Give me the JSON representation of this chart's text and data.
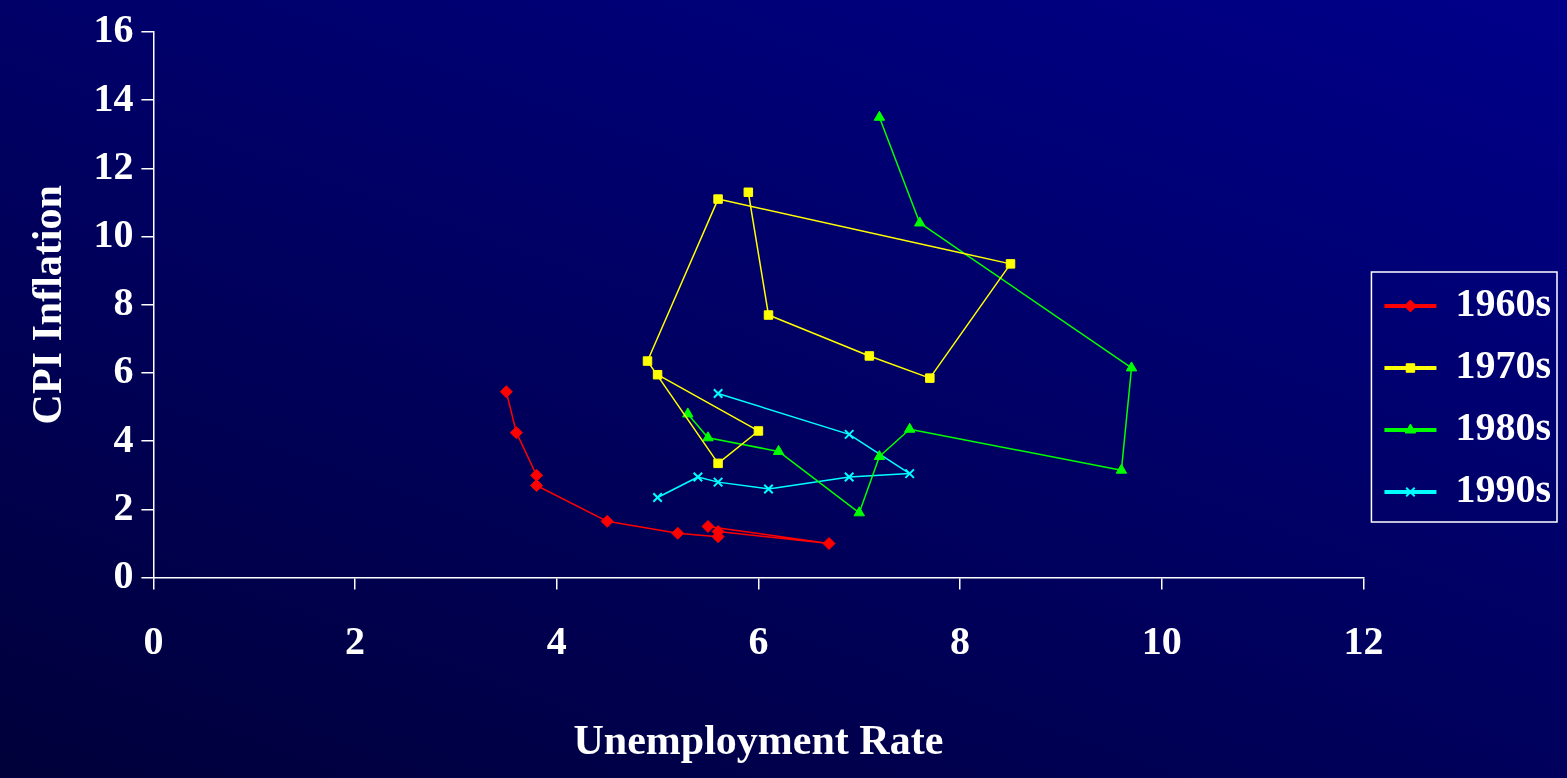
{
  "chart_data": {
    "type": "line",
    "xlabel": "Unemployment Rate",
    "ylabel": "CPI Inflation",
    "xlim": [
      0,
      12
    ],
    "xticks": [
      0,
      2,
      4,
      6,
      8,
      10,
      12
    ],
    "ylim": [
      0,
      16
    ],
    "yticks": [
      0,
      2,
      4,
      6,
      8,
      10,
      12,
      14,
      16
    ],
    "grid": false,
    "legend": "right",
    "series": [
      {
        "name": "1960s",
        "color": "#ff0000",
        "marker": "diamond",
        "x": [
          5.5,
          6.7,
          5.6,
          5.6,
          5.2,
          4.5,
          3.8,
          3.8,
          3.6,
          3.5
        ],
        "values": [
          1.5,
          1.0,
          1.35,
          1.2,
          1.3,
          1.65,
          2.7,
          3.0,
          4.25,
          5.45
        ]
      },
      {
        "name": "1970s",
        "color": "#ffff00",
        "marker": "square",
        "x": [
          5.0,
          6.0,
          5.6,
          4.9,
          5.6,
          8.5,
          7.7,
          7.1,
          6.1,
          5.9
        ],
        "values": [
          5.95,
          4.3,
          3.35,
          6.35,
          11.1,
          9.2,
          5.85,
          6.5,
          7.7,
          11.3
        ]
      },
      {
        "name": "1980s",
        "color": "#00ff00",
        "marker": "triangle",
        "x": [
          7.2,
          7.6,
          9.7,
          9.6,
          7.5,
          7.2,
          7.0,
          6.2,
          5.5,
          5.3
        ],
        "values": [
          13.5,
          10.4,
          6.15,
          3.15,
          4.35,
          3.55,
          1.9,
          3.7,
          4.1,
          4.8
        ]
      },
      {
        "name": "1990s",
        "color": "#00ffff",
        "marker": "cross",
        "x": [
          5.6,
          6.9,
          7.5,
          6.9,
          6.1,
          5.6,
          5.4,
          5.0
        ],
        "values": [
          5.4,
          4.2,
          3.05,
          2.95,
          2.6,
          2.8,
          2.95,
          2.35
        ]
      }
    ]
  }
}
